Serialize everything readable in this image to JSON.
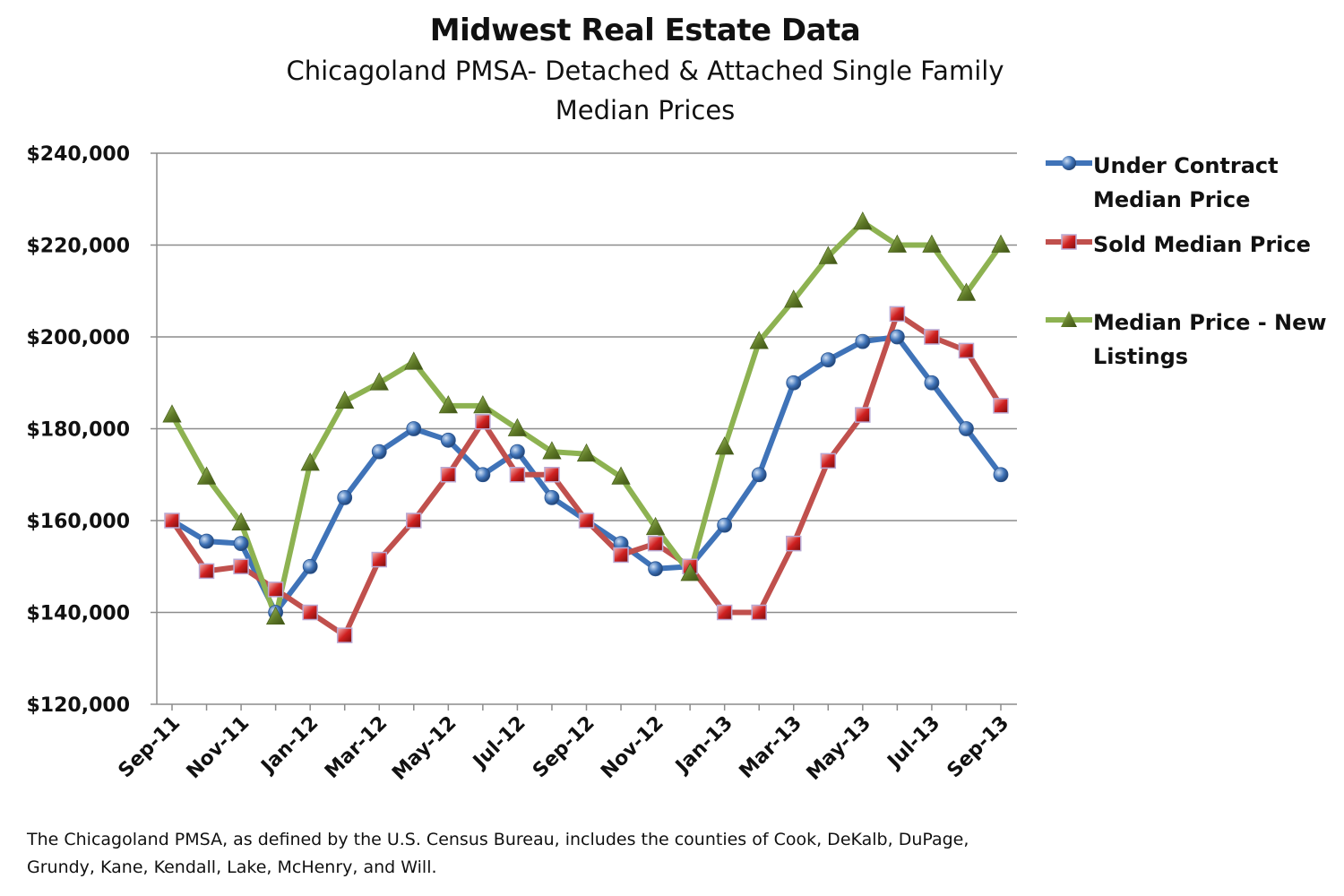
{
  "chart_data": {
    "type": "line",
    "title": "Midwest Real Estate Data",
    "subtitle_lines": [
      "Chicagoland PMSA- Detached & Attached Single Family",
      "Median Prices"
    ],
    "xlabel": "",
    "ylabel": "",
    "ylim": [
      120000,
      240000
    ],
    "yticks": [
      120000,
      140000,
      160000,
      180000,
      200000,
      220000,
      240000
    ],
    "ytick_labels": [
      "$120,000",
      "$140,000",
      "$160,000",
      "$180,000",
      "$200,000",
      "$220,000",
      "$240,000"
    ],
    "x": [
      "Sep-11",
      "Oct-11",
      "Nov-11",
      "Dec-11",
      "Jan-12",
      "Feb-12",
      "Mar-12",
      "Apr-12",
      "May-12",
      "Jun-12",
      "Jul-12",
      "Aug-12",
      "Sep-12",
      "Oct-12",
      "Nov-12",
      "Dec-12",
      "Jan-13",
      "Feb-13",
      "Mar-13",
      "Apr-13",
      "May-13",
      "Jun-13",
      "Jul-13",
      "Aug-13",
      "Sep-13"
    ],
    "xtick_labels": [
      "Sep-11",
      "Nov-11",
      "Jan-12",
      "Mar-12",
      "May-12",
      "Jul-12",
      "Sep-12",
      "Nov-12",
      "Jan-13",
      "Mar-13",
      "May-13",
      "Jul-13",
      "Sep-13"
    ],
    "grid": true,
    "legend_position": "right",
    "series": [
      {
        "name": "Under Contract Median Price",
        "name_lines": [
          "Under Contract",
          "Median Price"
        ],
        "color": "#3f73b8",
        "marker": "circle",
        "values": [
          160000,
          155500,
          155000,
          140000,
          150000,
          165000,
          175000,
          180000,
          177500,
          170000,
          175000,
          165000,
          160000,
          155000,
          149500,
          150000,
          159000,
          170000,
          190000,
          195000,
          199000,
          200000,
          190000,
          180000,
          170000
        ]
      },
      {
        "name": "Sold Median Price",
        "name_lines": [
          "Sold Median Price"
        ],
        "color": "#c0504d",
        "marker": "square",
        "values": [
          160000,
          149000,
          150000,
          145000,
          140000,
          135000,
          151500,
          160000,
          170000,
          181500,
          170000,
          170000,
          160000,
          152500,
          155000,
          150000,
          140000,
          140000,
          155000,
          173000,
          183000,
          205000,
          200000,
          197000,
          185000
        ]
      },
      {
        "name": "Median Price - New Listings",
        "name_lines": [
          "Median Price - New",
          "Listings"
        ],
        "color": "#8db251",
        "marker": "triangle",
        "values": [
          183000,
          169500,
          159500,
          139000,
          172500,
          186000,
          190000,
          194500,
          185000,
          185000,
          180000,
          175000,
          174500,
          169500,
          158500,
          148500,
          176000,
          199000,
          208000,
          217500,
          225000,
          220000,
          220000,
          209500,
          220000
        ]
      }
    ],
    "footnote": "The Chicagoland PMSA, as defined by the U.S. Census Bureau, includes the counties of Cook, DeKalb, DuPage, Grundy, Kane, Kendall, Lake, McHenry, and Will."
  }
}
